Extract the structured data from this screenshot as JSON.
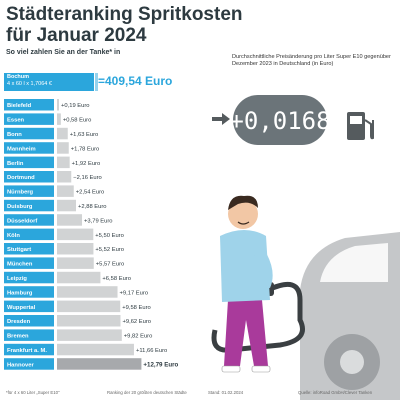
{
  "title_line1": "Städteranking Spritkosten",
  "title_line2": "für Januar 2024",
  "subtitle": "So viel zahlen Sie an der Tanke* in",
  "reference": {
    "city": "Bochum",
    "formula": "4 x 60 l x 1,7064 €",
    "total": "=409,54 Euro"
  },
  "side_text": "Durchschnittliche Preisänderung pro Liter Super E10 gegenüber Dezember 2023 in Deutschland (in Euro)",
  "price_change": "+0,0168",
  "chart_data": {
    "type": "bar",
    "orientation": "horizontal",
    "categories": [
      "Bielefeld",
      "Essen",
      "Bonn",
      "Mannheim",
      "Berlin",
      "Dortmund",
      "Nürnberg",
      "Duisburg",
      "Düsseldorf",
      "Köln",
      "Stuttgart",
      "München",
      "Leipzig",
      "Hamburg",
      "Wuppertal",
      "Dresden",
      "Bremen",
      "Frankfurt a. M.",
      "Hannover"
    ],
    "values": [
      0.19,
      0.58,
      1.63,
      1.78,
      1.92,
      -2.16,
      2.54,
      2.88,
      3.79,
      5.5,
      5.52,
      5.57,
      6.58,
      9.17,
      9.58,
      9.62,
      9.82,
      11.66,
      12.79
    ],
    "value_labels": [
      "+0,19 Euro",
      "+0,58 Euro",
      "+1,63 Euro",
      "+1,78 Euro",
      "+1,92 Euro",
      "−2,16 Euro",
      "+2,54 Euro",
      "+2,88 Euro",
      "+3,79 Euro",
      "+5,50 Euro",
      "+5,52 Euro",
      "+5,57 Euro",
      "+6,58 Euro",
      "+9,17 Euro",
      "+9,58 Euro",
      "+9,62 Euro",
      "+9,82 Euro",
      "+11,66 Euro",
      "+12,79 Euro"
    ],
    "highlight_index": 18
  },
  "colors": {
    "label_bg": "#2ba6dc",
    "bar": "#d1d3d4",
    "bar_highlight": "#a7a9ac",
    "text": "#2d3a40"
  },
  "footer": {
    "note": "*für 4 x 60 Liter „Super E10“",
    "ranking": "Ranking der 20 größten deutschen Städte",
    "date": "Stand: 01.02.2024",
    "source": "Quelle: infoRoad GmbH/Clever Tanken"
  }
}
